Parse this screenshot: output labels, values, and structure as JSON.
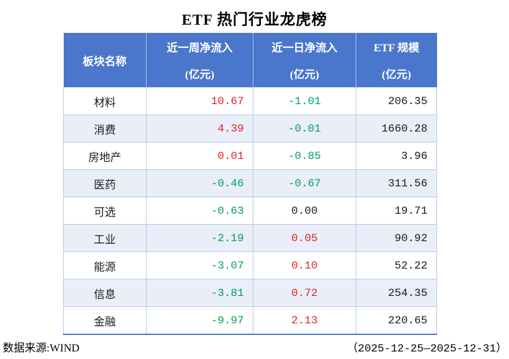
{
  "title": "ETF 热门行业龙虎榜",
  "table": {
    "headers": {
      "sector": "板块名称",
      "week_line1": "近一周净流入",
      "week_line2": "(亿元)",
      "day_line1": "近一日净流入",
      "day_line2": "(亿元)",
      "scale_line1": "ETF 规模",
      "scale_line2": "(亿元)"
    },
    "rows": [
      {
        "sector": "材料",
        "week": "10.67",
        "week_color": "red",
        "day": "-1.01",
        "day_color": "green",
        "scale": "206.35"
      },
      {
        "sector": "消费",
        "week": "4.39",
        "week_color": "red",
        "day": "-0.01",
        "day_color": "green",
        "scale": "1660.28"
      },
      {
        "sector": "房地产",
        "week": "0.01",
        "week_color": "red",
        "day": "-0.85",
        "day_color": "green",
        "scale": "3.96"
      },
      {
        "sector": "医药",
        "week": "-0.46",
        "week_color": "green",
        "day": "-0.67",
        "day_color": "green",
        "scale": "311.56"
      },
      {
        "sector": "可选",
        "week": "-0.63",
        "week_color": "green",
        "day": "0.00",
        "day_color": "black",
        "scale": "19.71"
      },
      {
        "sector": "工业",
        "week": "-2.19",
        "week_color": "green",
        "day": "0.05",
        "day_color": "red",
        "scale": "90.92"
      },
      {
        "sector": "能源",
        "week": "-3.07",
        "week_color": "green",
        "day": "0.10",
        "day_color": "red",
        "scale": "52.22"
      },
      {
        "sector": "信息",
        "week": "-3.81",
        "week_color": "green",
        "day": "0.72",
        "day_color": "red",
        "scale": "254.35"
      },
      {
        "sector": "金融",
        "week": "-9.97",
        "week_color": "green",
        "day": "2.13",
        "day_color": "red",
        "scale": "220.65"
      }
    ]
  },
  "footer": {
    "source": "数据来源:WIND",
    "period": "（2025-12-25—2025-12-31）"
  },
  "colors": {
    "header_bg": "#4a77cb",
    "row_alt_bg": "#e9eef8",
    "grid_border": "#b9ccea",
    "bottom_border": "#5580cd",
    "inflow_red": "#e02222",
    "outflow_green": "#00a05a",
    "neutral_black": "#1a1a1a"
  }
}
